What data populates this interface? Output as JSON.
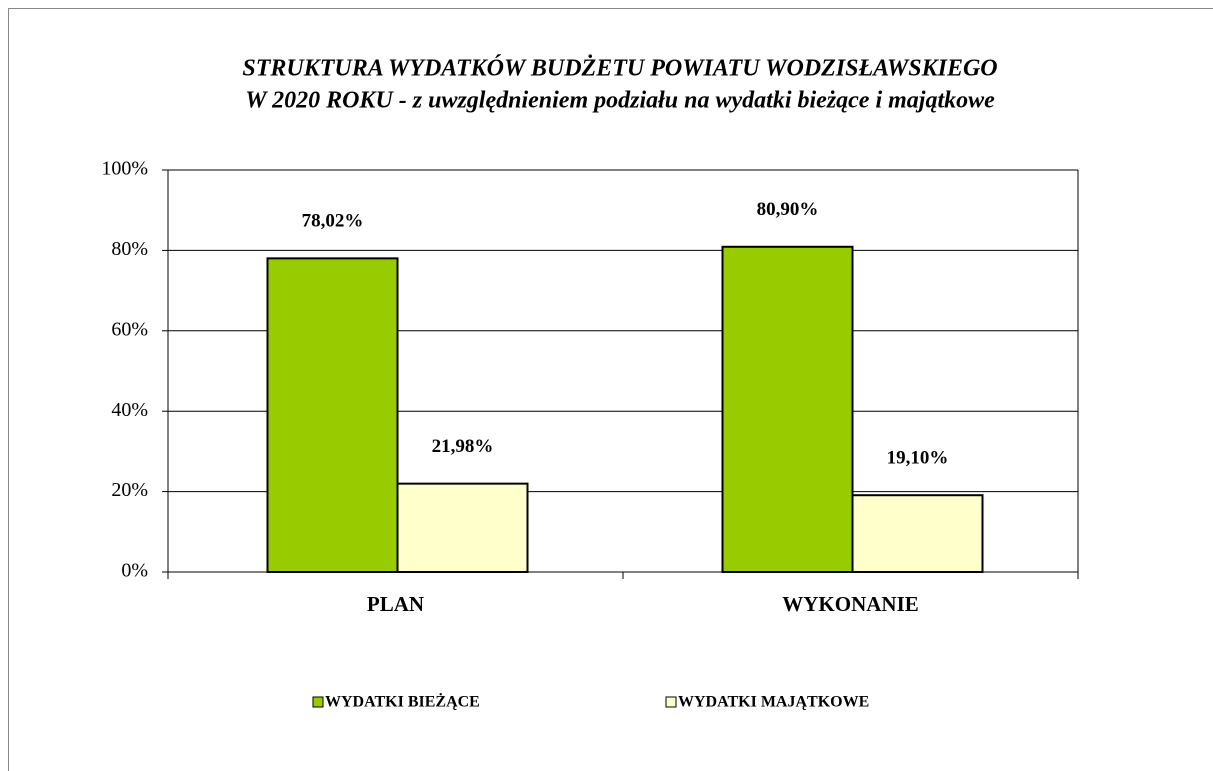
{
  "chart_data": {
    "type": "bar",
    "title": [
      "STRUKTURA WYDATKÓW BUDŻETU POWIATU WODZISŁAWSKIEGO",
      "W  2020 ROKU - z uwzględnieniem podziału na wydatki bieżące i majątkowe"
    ],
    "categories": [
      "PLAN",
      "WYKONANIE"
    ],
    "series": [
      {
        "name": "WYDATKI BIEŻĄCE",
        "color": "#99cc00",
        "values": [
          78.02,
          80.9
        ],
        "value_labels": [
          "78,02%",
          "80,90%"
        ]
      },
      {
        "name": "WYDATKI MAJĄTKOWE",
        "color": "#ffffcc",
        "values": [
          21.98,
          19.1
        ],
        "value_labels": [
          "21,98%",
          "19,10%"
        ]
      }
    ],
    "ylim": [
      0,
      100
    ],
    "yticks": [
      {
        "value": 0,
        "label": "0%"
      },
      {
        "value": 20,
        "label": "20%"
      },
      {
        "value": 40,
        "label": "40%"
      },
      {
        "value": 60,
        "label": "60%"
      },
      {
        "value": 80,
        "label": "80%"
      },
      {
        "value": 100,
        "label": "100%"
      }
    ],
    "grid": true,
    "legend": "bottom"
  }
}
